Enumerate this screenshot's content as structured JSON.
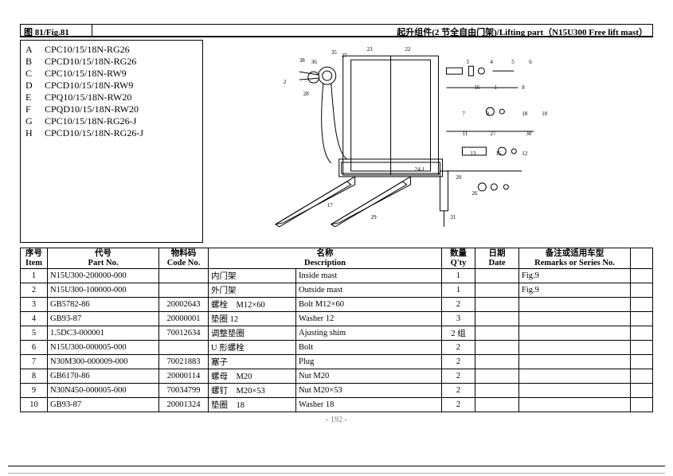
{
  "header": {
    "fig_label": "图 81/Fig.81",
    "title": "起升组件(2 节全自由门架)/Lifting part（N15U300 Free lift mast）"
  },
  "models": [
    {
      "key": "A",
      "val": "CPC10/15/18N-RG26"
    },
    {
      "key": "B",
      "val": "CPCD10/15/18N-RG26"
    },
    {
      "key": "C",
      "val": "CPC10/15/18N-RW9"
    },
    {
      "key": "D",
      "val": "CPCD10/15/18N-RW9"
    },
    {
      "key": "E",
      "val": "CPQ10/15/18N-RW20"
    },
    {
      "key": "F",
      "val": "CPQD10/15/18N-RW20"
    },
    {
      "key": "G",
      "val": "CPC10/15/18N-RG26-J"
    },
    {
      "key": "H",
      "val": "CPCD10/15/18N-RG26-J"
    }
  ],
  "columns": {
    "item_cn": "序号",
    "item_en": "Item",
    "part_cn": "代号",
    "part_en": "Part No.",
    "code_cn": "物料码",
    "code_en": "Code No.",
    "desc_cn": "名称",
    "desc_en": "Description",
    "qty_cn": "数量",
    "qty_en": "Q'ty",
    "date_cn": "日期",
    "date_en": "Date",
    "rem_cn": "备注或适用车型",
    "rem_en": "Remarks or Series No."
  },
  "rows": [
    {
      "item": "1",
      "part": "N15U300-200000-000",
      "code": "",
      "desc_cn": "内门架",
      "desc_en": "Inside mast",
      "qty": "1",
      "date": "",
      "rem": "Fig.9"
    },
    {
      "item": "2",
      "part": "N15U300-100000-000",
      "code": "",
      "desc_cn": "外门架",
      "desc_en": "Outside mast",
      "qty": "1",
      "date": "",
      "rem": "Fig.9"
    },
    {
      "item": "3",
      "part": "GB5782-86",
      "code": "20002643",
      "desc_cn": "螺栓　M12×60",
      "desc_en": "Bolt M12×60",
      "qty": "2",
      "date": "",
      "rem": ""
    },
    {
      "item": "4",
      "part": "GB93-87",
      "code": "20000001",
      "desc_cn": "垫圈  12",
      "desc_en": "Washer 12",
      "qty": "3",
      "date": "",
      "rem": ""
    },
    {
      "item": "5",
      "part": "1.5DC3-000001",
      "code": "70012634",
      "desc_cn": "调整垫圈",
      "desc_en": "Ajusting shim",
      "qty": "2 组",
      "date": "",
      "rem": ""
    },
    {
      "item": "6",
      "part": "N15U300-000005-000",
      "code": "",
      "desc_cn": "U 形螺栓",
      "desc_en": "Bolt",
      "qty": "2",
      "date": "",
      "rem": ""
    },
    {
      "item": "7",
      "part": "N30M300-000009-000",
      "code": "70021883",
      "desc_cn": "塞子",
      "desc_en": "Plug",
      "qty": "2",
      "date": "",
      "rem": ""
    },
    {
      "item": "8",
      "part": "GB6170-86",
      "code": "20000114",
      "desc_cn": "螺母　M20",
      "desc_en": "Nut M20",
      "qty": "2",
      "date": "",
      "rem": ""
    },
    {
      "item": "9",
      "part": "N30N450-000005-000",
      "code": "70034799",
      "desc_cn": "螺钉　M20×53",
      "desc_en": "Nut M20×53",
      "qty": "2",
      "date": "",
      "rem": ""
    },
    {
      "item": "10",
      "part": "GB93-87",
      "code": "20001324",
      "desc_cn": "垫圈　18",
      "desc_en": "Washer 18",
      "qty": "2",
      "date": "",
      "rem": ""
    }
  ],
  "page_number": "- 192 -",
  "drawing_callouts": [
    "38",
    "36",
    "35",
    "37",
    "23",
    "22",
    "3",
    "4",
    "5",
    "6",
    "16",
    "1",
    "8",
    "7",
    "9",
    "18",
    "10",
    "11",
    "27",
    "30",
    "13",
    "15",
    "12",
    "20",
    "26",
    "21",
    "17",
    "29",
    "28",
    "24-1",
    "2"
  ]
}
